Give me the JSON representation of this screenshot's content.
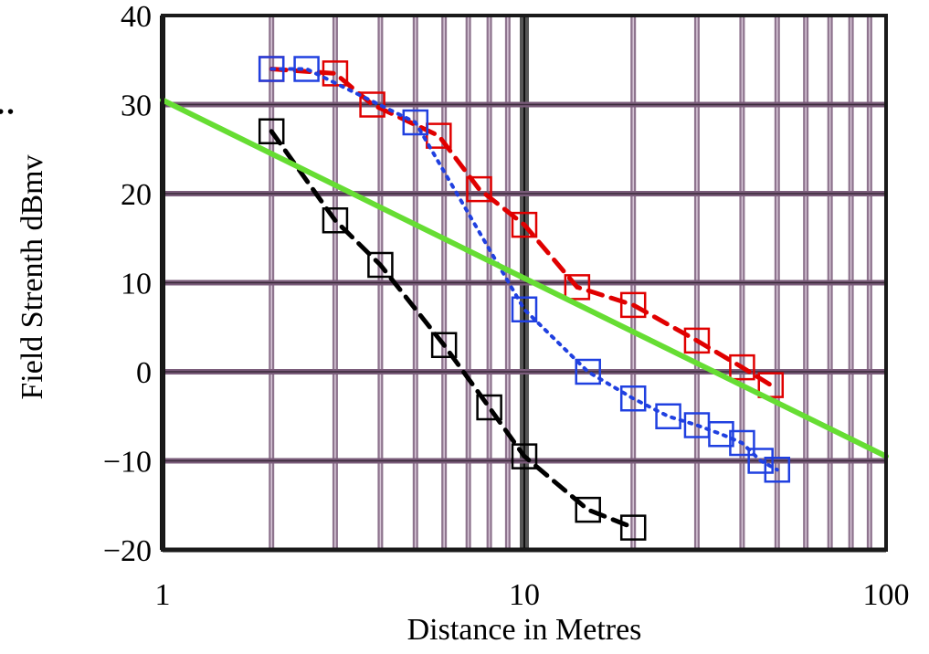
{
  "chart_data": {
    "type": "scatter",
    "xlabel": "Distance in Metres",
    "ylabel": "Field Strenth dBmv",
    "ylabel_fragment": ":",
    "x_scale": "log",
    "xlim": [
      1,
      100
    ],
    "ylim": [
      -20,
      40
    ],
    "x_ticks": [
      {
        "value": 1,
        "label": "1"
      },
      {
        "value": 10,
        "label": "10"
      },
      {
        "value": 100,
        "label": "100"
      }
    ],
    "y_ticks": [
      {
        "value": 40,
        "label": "40"
      },
      {
        "value": 30,
        "label": "30"
      },
      {
        "value": 20,
        "label": "20"
      },
      {
        "value": 10,
        "label": "10"
      },
      {
        "value": 0,
        "label": "0"
      },
      {
        "value": -10,
        "label": "−10"
      },
      {
        "value": -20,
        "label": "−20"
      }
    ],
    "grid": true,
    "colors": {
      "grid": "#7a5c7a",
      "border": "#1a1a1a",
      "decade_line": "#555555"
    },
    "series": [
      {
        "color": "#e00000",
        "line_style": "dashed",
        "marker": "square",
        "x": [
          2,
          3,
          3.8,
          5.8,
          7.5,
          10,
          14,
          20,
          30,
          40,
          48
        ],
        "y": [
          34,
          33.5,
          30,
          26.5,
          20.5,
          16.5,
          9.5,
          7.5,
          3.5,
          0.5,
          -1.5
        ]
      },
      {
        "color": "#2040e0",
        "line_style": "dotted",
        "marker": "square",
        "x": [
          2,
          2.5,
          5,
          10,
          15,
          20,
          25,
          30,
          35,
          40,
          45,
          50
        ],
        "y": [
          34,
          34,
          28,
          7,
          0,
          -3,
          -5,
          -6,
          -7,
          -8,
          -10,
          -11
        ]
      },
      {
        "color": "#000000",
        "line_style": "dashed",
        "marker": "square",
        "x": [
          2,
          3,
          4,
          6,
          8,
          10,
          15,
          20
        ],
        "y": [
          27,
          17,
          12,
          3,
          -4,
          -9.5,
          -15.5,
          -17.5
        ]
      },
      {
        "color": "#66dd33",
        "line_style": "solid",
        "marker": "none",
        "x": [
          1,
          100
        ],
        "y": [
          30.5,
          -9.5
        ]
      }
    ]
  }
}
